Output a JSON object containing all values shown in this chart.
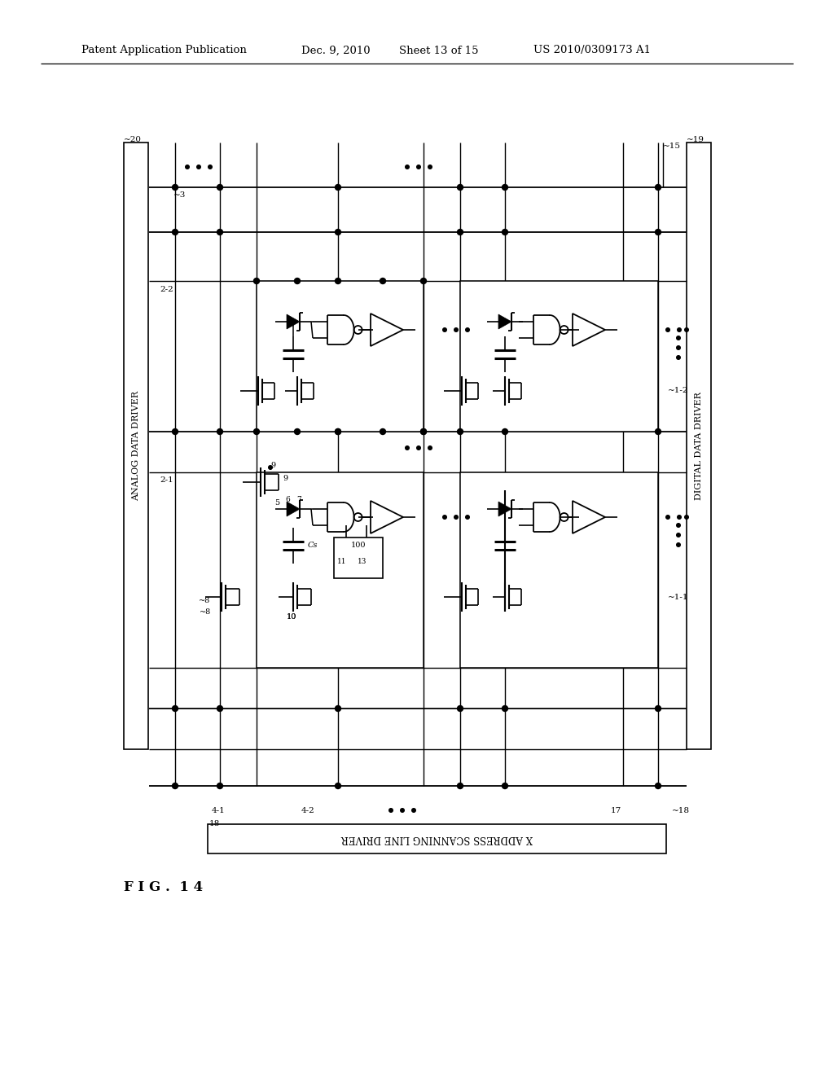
{
  "header_left": "Patent Application Publication",
  "header_date": "Dec. 9, 2010",
  "header_sheet": "Sheet 13 of 15",
  "header_patent": "US 2010/0309173 A1",
  "fig_label": "F I G .  1 4",
  "left_bar_label": "ANALOG DATA DRIVER",
  "right_bar_label": "DIGITAL DATA DRIVER",
  "bottom_bar_label": "X ADDRESS SCANNING LINE DRIVER",
  "bg_color": "#ffffff",
  "lc": "#000000",
  "fig_width": 10.24,
  "fig_height": 13.2
}
